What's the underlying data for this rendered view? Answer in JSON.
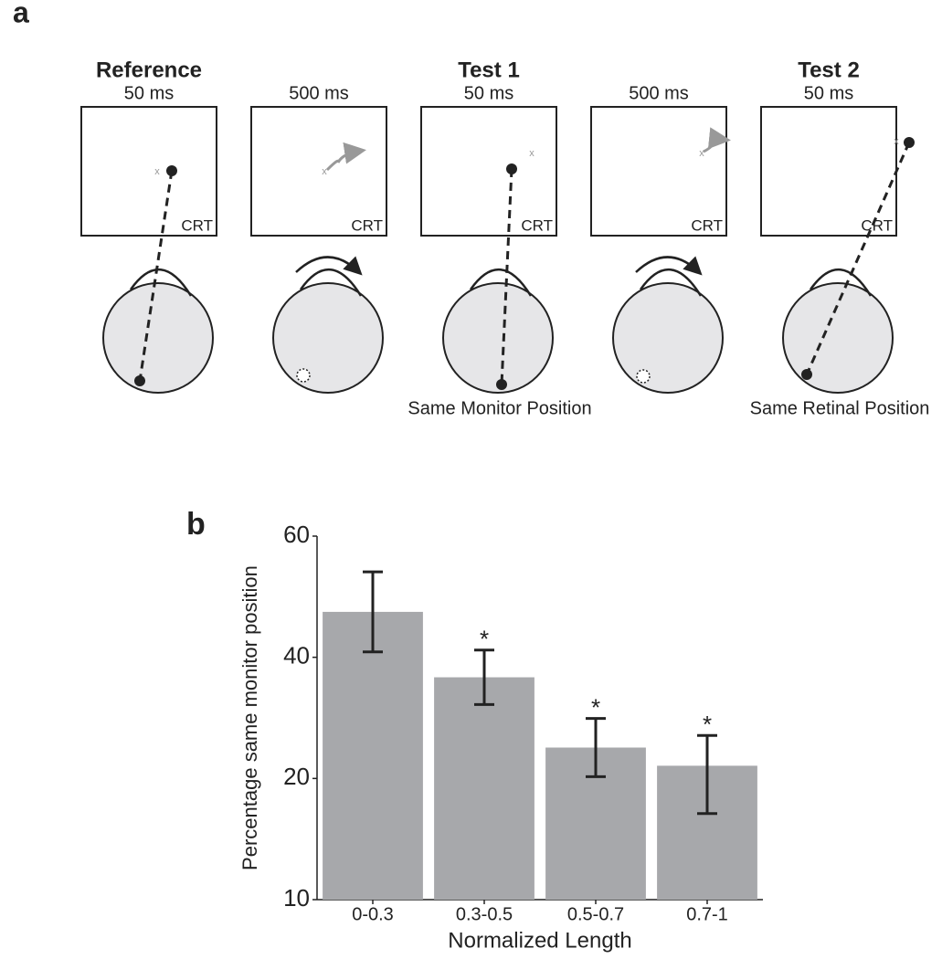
{
  "panel_labels": [
    "a",
    "b"
  ],
  "panel_a": {
    "frames": [
      {
        "title": "Reference",
        "duration": "50 ms",
        "monitor": "CRT"
      },
      {
        "duration": "500 ms",
        "monitor": "CRT"
      },
      {
        "title": "Test 1",
        "duration": "50 ms",
        "monitor": "CRT",
        "caption": "Same Monitor Position"
      },
      {
        "duration": "500 ms",
        "monitor": "CRT"
      },
      {
        "title": "Test 2",
        "duration": "50 ms",
        "monitor": "CRT",
        "caption": "Same Retinal Position"
      }
    ]
  },
  "chart_data": {
    "type": "bar",
    "x_label": "Normalized Length",
    "y_label": "Percentage same monitor position",
    "categories": [
      "0-0.3",
      "0.3-0.5",
      "0.5-0.7",
      "0.7-1"
    ],
    "values": [
      47.5,
      36.7,
      25.1,
      22.1
    ],
    "errors": [
      6.6,
      4.5,
      4.8,
      5.0
    ],
    "color": "#a7a8ab",
    "ylim": [
      10,
      60
    ],
    "yticks": [
      10,
      20,
      40,
      60
    ],
    "annotations": [
      {
        "category": "0.3-0.5",
        "text": "*"
      },
      {
        "category": "0.5-0.7",
        "text": "*"
      },
      {
        "category": "0.7-1",
        "text": "*"
      }
    ]
  }
}
